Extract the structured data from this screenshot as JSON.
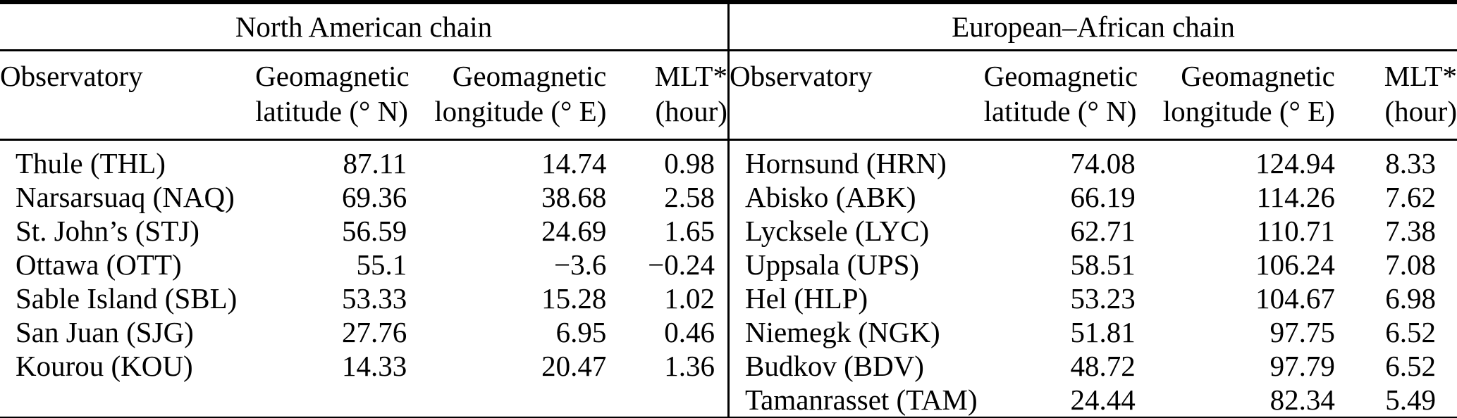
{
  "page": {
    "background_color": "#ffffff",
    "text_color": "#000000",
    "rule_color": "#000000"
  },
  "column_header": {
    "observatory": "Observatory",
    "lat_line1": "Geomagnetic",
    "lat_line2": "latitude (° N)",
    "lon_line1": "Geomagnetic",
    "lon_line2": "longitude (° E)",
    "mlt_line1": "MLT*",
    "mlt_line2": "(hour)"
  },
  "chains": [
    {
      "title": "North American chain",
      "rows": [
        {
          "observatory": "Thule (THL)",
          "lat": "87.11",
          "lon": "14.74",
          "mlt": "0.98"
        },
        {
          "observatory": "Narsarsuaq (NAQ)",
          "lat": "69.36",
          "lon": "38.68",
          "mlt": "2.58"
        },
        {
          "observatory": "St. John’s (STJ)",
          "lat": "56.59",
          "lon": "24.69",
          "mlt": "1.65"
        },
        {
          "observatory": "Ottawa (OTT)",
          "lat": "55.1",
          "lon": "−3.6",
          "mlt": "−0.24"
        },
        {
          "observatory": "Sable Island (SBL)",
          "lat": "53.33",
          "lon": "15.28",
          "mlt": "1.02"
        },
        {
          "observatory": "San Juan (SJG)",
          "lat": "27.76",
          "lon": "6.95",
          "mlt": "0.46"
        },
        {
          "observatory": "Kourou (KOU)",
          "lat": "14.33",
          "lon": "20.47",
          "mlt": "1.36"
        }
      ]
    },
    {
      "title": "European–African chain",
      "rows": [
        {
          "observatory": "Hornsund (HRN)",
          "lat": "74.08",
          "lon": "124.94",
          "mlt": "8.33"
        },
        {
          "observatory": "Abisko (ABK)",
          "lat": "66.19",
          "lon": "114.26",
          "mlt": "7.62"
        },
        {
          "observatory": "Lycksele (LYC)",
          "lat": "62.71",
          "lon": "110.71",
          "mlt": "7.38"
        },
        {
          "observatory": "Uppsala (UPS)",
          "lat": "58.51",
          "lon": "106.24",
          "mlt": "7.08"
        },
        {
          "observatory": "Hel (HLP)",
          "lat": "53.23",
          "lon": "104.67",
          "mlt": "6.98"
        },
        {
          "observatory": "Niemegk (NGK)",
          "lat": "51.81",
          "lon": "97.75",
          "mlt": "6.52"
        },
        {
          "observatory": "Budkov (BDV)",
          "lat": "48.72",
          "lon": "97.79",
          "mlt": "6.52"
        },
        {
          "observatory": "Tamanrasset (TAM)",
          "lat": "24.44",
          "lon": "82.34",
          "mlt": "5.49"
        }
      ]
    }
  ]
}
